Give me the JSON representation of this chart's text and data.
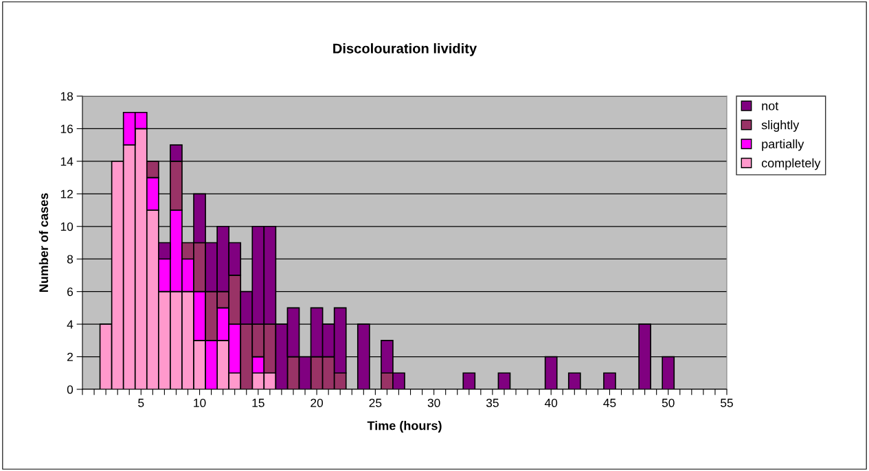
{
  "chart_data": {
    "type": "bar",
    "stacked": true,
    "title": "Discolouration lividity",
    "xlabel": "Time (hours)",
    "ylabel": "Number of cases",
    "x": [
      2,
      3,
      4,
      5,
      6,
      7,
      8,
      9,
      10,
      11,
      12,
      13,
      14,
      15,
      16,
      17,
      18,
      19,
      20,
      21,
      22,
      24,
      26,
      27,
      33,
      36,
      40,
      42,
      45,
      48,
      50
    ],
    "series": [
      {
        "name": "completely",
        "color": "#ff99cc",
        "values": [
          4,
          14,
          15,
          16,
          11,
          6,
          6,
          6,
          3,
          null,
          3,
          1,
          null,
          1,
          1,
          null,
          null,
          null,
          null,
          null,
          null,
          null,
          null,
          null,
          null,
          null,
          null,
          null,
          null,
          null,
          null
        ]
      },
      {
        "name": "partially",
        "color": "#ff00ff",
        "values": [
          null,
          null,
          2,
          1,
          2,
          2,
          5,
          2,
          3,
          3,
          2,
          3,
          null,
          1,
          null,
          null,
          null,
          null,
          null,
          null,
          null,
          null,
          null,
          null,
          null,
          null,
          null,
          null,
          null,
          null,
          null
        ]
      },
      {
        "name": "slightly",
        "color": "#993366",
        "values": [
          null,
          null,
          null,
          null,
          1,
          null,
          3,
          1,
          3,
          3,
          1,
          3,
          4,
          2,
          3,
          null,
          2,
          null,
          2,
          2,
          1,
          null,
          1,
          null,
          null,
          null,
          null,
          null,
          null,
          null,
          null
        ]
      },
      {
        "name": "not",
        "color": "#800080",
        "values": [
          null,
          null,
          null,
          null,
          null,
          1,
          1,
          null,
          3,
          3,
          4,
          2,
          2,
          6,
          6,
          4,
          3,
          2,
          3,
          2,
          4,
          4,
          2,
          1,
          1,
          1,
          2,
          1,
          1,
          4,
          2
        ]
      }
    ],
    "xlim": [
      0,
      55
    ],
    "xticks": [
      {
        "value": 0,
        "label": null
      },
      {
        "value": 1,
        "label": null
      },
      {
        "value": 2,
        "label": null
      },
      {
        "value": 3,
        "label": null
      },
      {
        "value": 4,
        "label": null
      },
      5,
      {
        "value": 6,
        "label": null
      },
      {
        "value": 7,
        "label": null
      },
      {
        "value": 8,
        "label": null
      },
      {
        "value": 9,
        "label": null
      },
      10,
      {
        "value": 11,
        "label": null
      },
      {
        "value": 12,
        "label": null
      },
      {
        "value": 13,
        "label": null
      },
      {
        "value": 14,
        "label": null
      },
      15,
      {
        "value": 16,
        "label": null
      },
      {
        "value": 17,
        "label": null
      },
      {
        "value": 18,
        "label": null
      },
      {
        "value": 19,
        "label": null
      },
      20,
      {
        "value": 21,
        "label": null
      },
      {
        "value": 22,
        "label": null
      },
      {
        "value": 23,
        "label": null
      },
      {
        "value": 24,
        "label": null
      },
      25,
      {
        "value": 26,
        "label": null
      },
      {
        "value": 27,
        "label": null
      },
      {
        "value": 28,
        "label": null
      },
      {
        "value": 29,
        "label": null
      },
      30,
      {
        "value": 31,
        "label": null
      },
      {
        "value": 32,
        "label": null
      },
      {
        "value": 33,
        "label": null
      },
      {
        "value": 34,
        "label": null
      },
      35,
      {
        "value": 36,
        "label": null
      },
      {
        "value": 37,
        "label": null
      },
      {
        "value": 38,
        "label": null
      },
      {
        "value": 39,
        "label": null
      },
      40,
      {
        "value": 41,
        "label": null
      },
      {
        "value": 42,
        "label": null
      },
      {
        "value": 43,
        "label": null
      },
      {
        "value": 44,
        "label": null
      },
      45,
      {
        "value": 46,
        "label": null
      },
      {
        "value": 47,
        "label": null
      },
      {
        "value": 48,
        "label": null
      },
      {
        "value": 49,
        "label": null
      },
      50,
      {
        "value": 51,
        "label": null
      },
      {
        "value": 52,
        "label": null
      },
      {
        "value": 53,
        "label": null
      },
      {
        "value": 54,
        "label": null
      },
      55
    ],
    "ylim": [
      0,
      18
    ],
    "yticks": [
      0,
      2,
      4,
      6,
      8,
      10,
      12,
      14,
      16,
      18
    ],
    "grid": "y",
    "legend": "right"
  }
}
